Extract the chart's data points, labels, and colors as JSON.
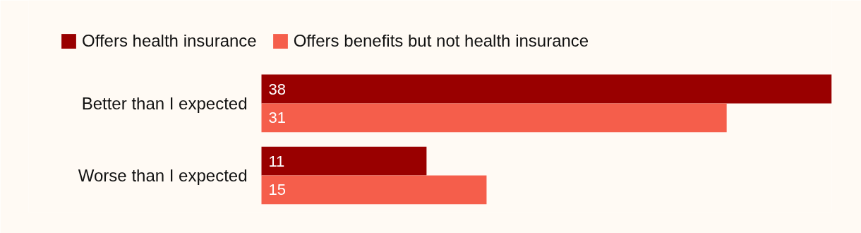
{
  "chart_data": {
    "type": "bar",
    "orientation": "horizontal",
    "categories": [
      "Better than I expected",
      "Worse than I expected"
    ],
    "series": [
      {
        "name": "Offers health insurance",
        "color": "#990000",
        "values": [
          38,
          11
        ]
      },
      {
        "name": "Offers benefits but not health insurance",
        "color": "#f55e4b",
        "values": [
          31,
          15
        ]
      }
    ],
    "data_labels": true,
    "legend": "top left",
    "grid": false,
    "tick_labels": "y"
  }
}
